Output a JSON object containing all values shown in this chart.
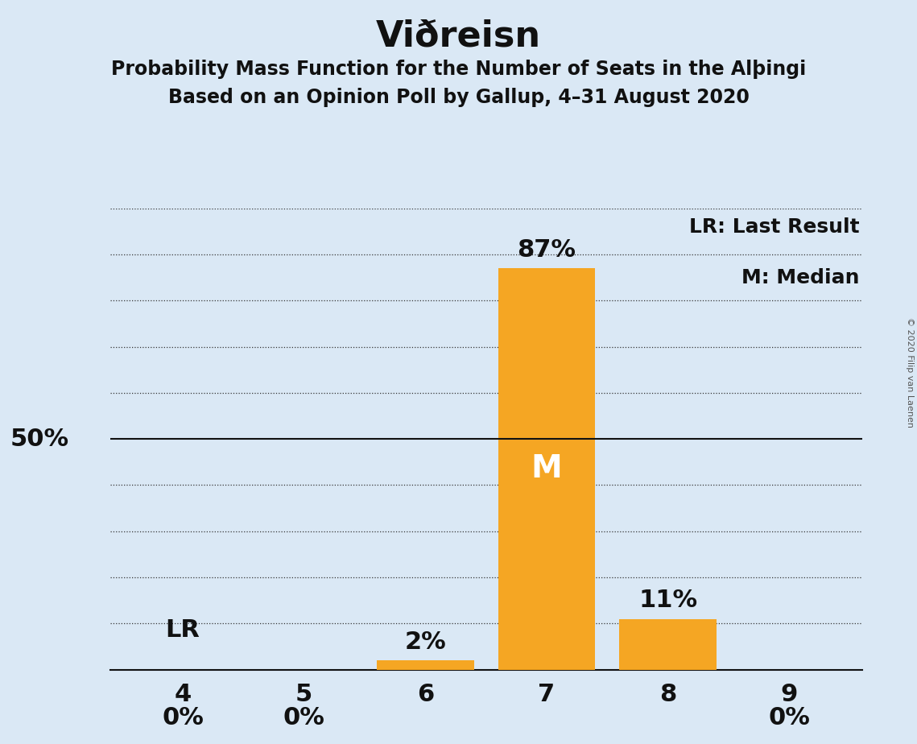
{
  "title": "Viðreisn",
  "subtitle1": "Probability Mass Function for the Number of Seats in the Alþingi",
  "subtitle2": "Based on an Opinion Poll by Gallup, 4–31 August 2020",
  "copyright": "© 2020 Filip van Laenen",
  "categories": [
    4,
    5,
    6,
    7,
    8,
    9
  ],
  "values": [
    0,
    0,
    2,
    87,
    11,
    0
  ],
  "bar_color": "#F5A623",
  "background_color": "#DAE8F5",
  "label_50_text": "50%",
  "median_seat": 7,
  "median_label": "M",
  "lr_seat": 4,
  "lr_label": "LR",
  "legend_lr": "LR: Last Result",
  "legend_m": "M: Median",
  "ylim": [
    0,
    100
  ],
  "dotted_yticks": [
    10,
    20,
    30,
    40,
    60,
    70,
    80,
    90,
    100
  ],
  "solid_ytick": 50,
  "title_fontsize": 32,
  "subtitle_fontsize": 17,
  "axis_label_fontsize": 22,
  "bar_label_fontsize": 22,
  "median_label_fontsize": 28,
  "legend_fontsize": 18,
  "copyright_fontsize": 8
}
